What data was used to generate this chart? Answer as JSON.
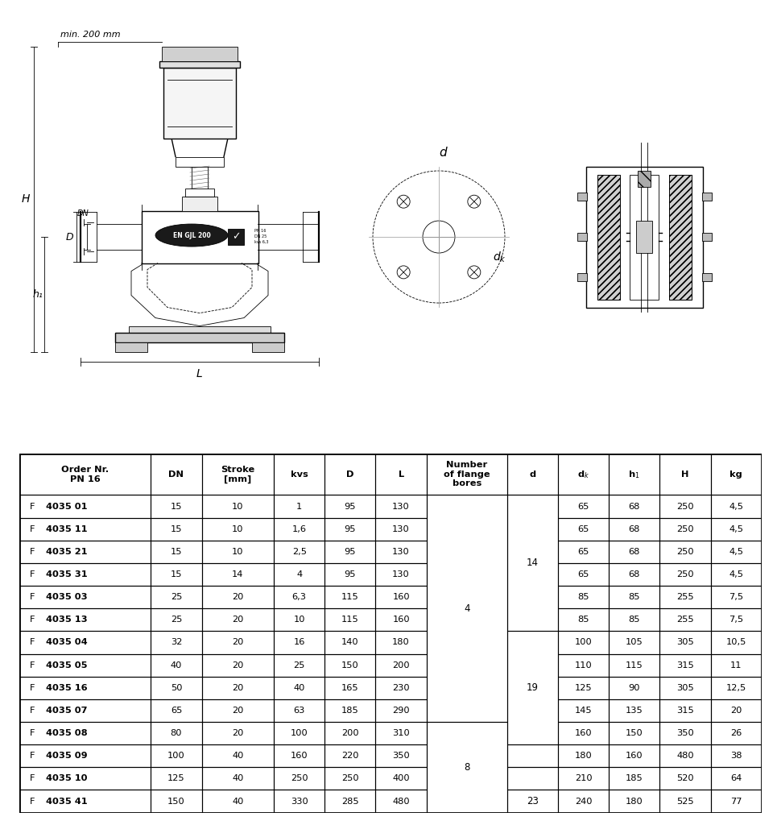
{
  "bg_color": "#ffffff",
  "line_color": "#000000",
  "diagram_note": "min. 200 mm",
  "col_labels_line1": [
    "Order Nr.",
    "DN",
    "Stroke",
    "kvs",
    "D",
    "L",
    "Number",
    "d",
    "dₖ",
    "h₁",
    "H",
    "kg"
  ],
  "col_labels_line2": [
    "PN 16",
    "",
    "[mm]",
    "",
    "",
    "",
    "of flange",
    "",
    "",
    "",
    "",
    ""
  ],
  "col_labels_line3": [
    "",
    "",
    "",
    "",
    "",
    "",
    "bores",
    "",
    "",
    "",
    "",
    ""
  ],
  "table_rows": [
    [
      "F 4035 01",
      "15",
      "10",
      "1",
      "95",
      "130",
      "",
      "",
      "65",
      "68",
      "250",
      "4,5"
    ],
    [
      "F 4035 11",
      "15",
      "10",
      "1,6",
      "95",
      "130",
      "",
      "",
      "65",
      "68",
      "250",
      "4,5"
    ],
    [
      "F 4035 21",
      "15",
      "10",
      "2,5",
      "95",
      "130",
      "",
      "14",
      "65",
      "68",
      "250",
      "4,5"
    ],
    [
      "F 4035 31",
      "15",
      "14",
      "4",
      "95",
      "130",
      "",
      "",
      "65",
      "68",
      "250",
      "4,5"
    ],
    [
      "F 4035 03",
      "25",
      "20",
      "6,3",
      "115",
      "160",
      "4",
      "",
      "85",
      "85",
      "255",
      "7,5"
    ],
    [
      "F 4035 13",
      "25",
      "20",
      "10",
      "115",
      "160",
      "",
      "",
      "85",
      "85",
      "255",
      "7,5"
    ],
    [
      "F 4035 04",
      "32",
      "20",
      "16",
      "140",
      "180",
      "",
      "",
      "100",
      "105",
      "305",
      "10,5"
    ],
    [
      "F 4035 05",
      "40",
      "20",
      "25",
      "150",
      "200",
      "",
      "",
      "110",
      "115",
      "315",
      "11"
    ],
    [
      "F 4035 16",
      "50",
      "20",
      "40",
      "165",
      "230",
      "",
      "",
      "125",
      "90",
      "305",
      "12,5"
    ],
    [
      "F 4035 07",
      "65",
      "20",
      "63",
      "185",
      "290",
      "",
      "19",
      "145",
      "135",
      "315",
      "20"
    ],
    [
      "F 4035 08",
      "80",
      "20",
      "100",
      "200",
      "310",
      "",
      "",
      "160",
      "150",
      "350",
      "26"
    ],
    [
      "F 4035 09",
      "100",
      "40",
      "160",
      "220",
      "350",
      "8",
      "",
      "180",
      "160",
      "480",
      "38"
    ],
    [
      "F 4035 10",
      "125",
      "40",
      "250",
      "250",
      "400",
      "",
      "",
      "210",
      "185",
      "520",
      "64"
    ],
    [
      "F 4035 41",
      "150",
      "40",
      "330",
      "285",
      "480",
      "",
      "23",
      "240",
      "180",
      "525",
      "77"
    ]
  ],
  "flange_groups": [
    [
      0,
      9,
      "4"
    ],
    [
      10,
      13,
      "8"
    ]
  ],
  "d_groups": [
    [
      0,
      5,
      "14"
    ],
    [
      6,
      10,
      "19"
    ],
    [
      13,
      13,
      "23"
    ]
  ],
  "col_widths_raw": [
    1.55,
    0.6,
    0.85,
    0.6,
    0.6,
    0.6,
    0.95,
    0.6,
    0.6,
    0.6,
    0.6,
    0.6
  ]
}
